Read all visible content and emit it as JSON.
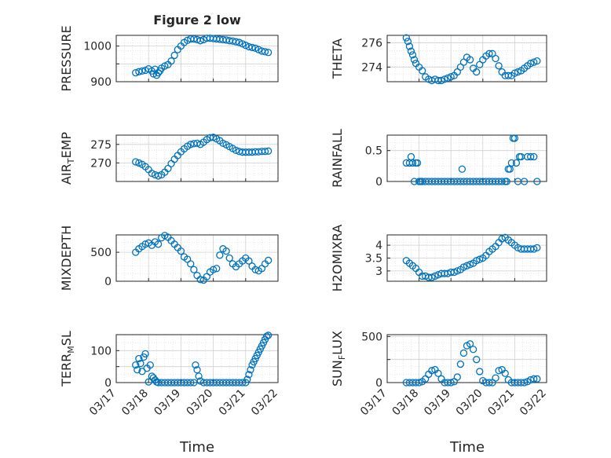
{
  "figure": {
    "title": "Figure 2 low",
    "xlabel": "Time",
    "marker_color": "#0072BD",
    "x_ticks": [
      "03/17",
      "03/18",
      "03/19",
      "03/20",
      "03/21",
      "03/22"
    ]
  },
  "chart_data": [
    {
      "type": "scatter",
      "name": "pressure",
      "ylabel": "PRESSURE",
      "ylim": [
        900,
        1030
      ],
      "yticks": [
        900,
        950,
        1000
      ],
      "ytick_labels": [
        "900",
        "",
        "1000"
      ],
      "x": [
        0.6,
        0.7,
        0.8,
        0.9,
        1.0,
        1.1,
        1.15,
        1.2,
        1.25,
        1.3,
        1.35,
        1.4,
        1.5,
        1.6,
        1.7,
        1.8,
        1.9,
        2.0,
        2.1,
        2.2,
        2.3,
        2.4,
        2.5,
        2.6,
        2.7,
        2.8,
        2.9,
        3.0,
        3.1,
        3.2,
        3.3,
        3.4,
        3.5,
        3.6,
        3.7,
        3.8,
        3.9,
        4.0,
        4.1,
        4.2,
        4.3,
        4.4,
        4.5,
        4.6,
        4.7
      ],
      "y": [
        925,
        928,
        930,
        932,
        936,
        930,
        922,
        935,
        918,
        925,
        930,
        938,
        944,
        948,
        958,
        974,
        990,
        1000,
        1010,
        1016,
        1020,
        1020,
        1018,
        1015,
        1018,
        1022,
        1022,
        1021,
        1020,
        1019,
        1018,
        1017,
        1015,
        1014,
        1012,
        1010,
        1006,
        1002,
        998,
        996,
        994,
        990,
        986,
        984,
        982
      ]
    },
    {
      "type": "scatter",
      "name": "theta",
      "ylabel": "THETA",
      "ylim": [
        272.8,
        276.6
      ],
      "yticks": [
        274,
        276
      ],
      "ytick_labels": [
        "274",
        "276"
      ],
      "x": [
        0.6,
        0.65,
        0.7,
        0.75,
        0.8,
        0.85,
        0.9,
        1.0,
        1.1,
        1.2,
        1.3,
        1.4,
        1.5,
        1.6,
        1.7,
        1.8,
        1.9,
        2.0,
        2.1,
        2.2,
        2.3,
        2.4,
        2.5,
        2.6,
        2.7,
        2.8,
        2.9,
        3.0,
        3.1,
        3.2,
        3.3,
        3.4,
        3.5,
        3.6,
        3.7,
        3.8,
        3.9,
        4.0,
        4.1,
        4.2,
        4.3,
        4.4,
        4.5,
        4.6,
        4.7
      ],
      "y": [
        276.4,
        276.1,
        275.7,
        275.3,
        275.0,
        274.6,
        274.3,
        274.0,
        273.7,
        273.2,
        273.0,
        272.9,
        273.0,
        272.9,
        272.9,
        273.0,
        273.1,
        273.2,
        273.3,
        273.6,
        274.0,
        274.4,
        274.8,
        274.6,
        273.9,
        273.6,
        274.2,
        274.6,
        274.9,
        275.1,
        275.1,
        274.7,
        274.1,
        273.6,
        273.3,
        273.3,
        273.3,
        273.5,
        273.6,
        273.7,
        273.9,
        274.1,
        274.3,
        274.4,
        274.5
      ]
    },
    {
      "type": "scatter",
      "name": "air_temp",
      "ylabel": "AIR_TEMP",
      "ylim": [
        265,
        277.5
      ],
      "yticks": [
        270,
        275
      ],
      "ytick_labels": [
        "270",
        "275"
      ],
      "x": [
        0.6,
        0.7,
        0.8,
        0.9,
        1.0,
        1.1,
        1.2,
        1.3,
        1.4,
        1.5,
        1.6,
        1.7,
        1.8,
        1.9,
        2.0,
        2.1,
        2.2,
        2.3,
        2.4,
        2.5,
        2.6,
        2.7,
        2.8,
        2.9,
        3.0,
        3.1,
        3.2,
        3.3,
        3.4,
        3.5,
        3.6,
        3.7,
        3.8,
        3.9,
        4.0,
        4.1,
        4.2,
        4.3,
        4.4,
        4.5,
        4.6,
        4.7
      ],
      "y": [
        270.3,
        270.0,
        269.6,
        269.0,
        268.2,
        267.2,
        266.8,
        266.5,
        266.8,
        267.5,
        268.5,
        269.8,
        271.0,
        272.0,
        273.0,
        273.8,
        274.5,
        275.0,
        275.2,
        275.3,
        275.0,
        275.6,
        276.3,
        276.8,
        276.9,
        276.5,
        276.0,
        275.3,
        274.9,
        274.4,
        273.9,
        273.4,
        273.1,
        272.9,
        272.9,
        272.9,
        272.9,
        273.0,
        273.0,
        273.1,
        273.1,
        273.2
      ]
    },
    {
      "type": "scatter",
      "name": "rainfall",
      "ylabel": "RAINFALL",
      "ylim": [
        0,
        0.75
      ],
      "yticks": [
        0,
        0.5
      ],
      "ytick_labels": [
        "0",
        "0.5"
      ],
      "x": [
        0.6,
        0.7,
        0.75,
        0.8,
        0.85,
        0.9,
        0.95,
        1.0,
        1.05,
        1.1,
        1.2,
        1.3,
        1.4,
        1.5,
        1.6,
        1.7,
        1.8,
        1.9,
        2.0,
        2.1,
        2.2,
        2.3,
        2.35,
        2.4,
        2.5,
        2.6,
        2.7,
        2.8,
        2.9,
        3.0,
        3.1,
        3.2,
        3.3,
        3.4,
        3.5,
        3.6,
        3.7,
        3.75,
        3.8,
        3.85,
        3.9,
        3.95,
        4.0,
        4.05,
        4.1,
        4.15,
        4.2,
        4.3,
        4.4,
        4.5,
        4.6,
        4.7
      ],
      "y": [
        0.3,
        0.3,
        0.4,
        0.3,
        0,
        0.3,
        0.3,
        0,
        0,
        0,
        0,
        0,
        0,
        0,
        0,
        0,
        0,
        0,
        0,
        0,
        0,
        0,
        0.2,
        0,
        0,
        0,
        0,
        0,
        0,
        0,
        0,
        0,
        0,
        0,
        0,
        0,
        0,
        0,
        0.2,
        0.2,
        0.3,
        0.7,
        0.7,
        0.3,
        0,
        0.4,
        0.4,
        0,
        0.4,
        0.4,
        0.4,
        0
      ]
    },
    {
      "type": "scatter",
      "name": "mixdepth",
      "ylabel": "MIXDEPTH",
      "ylim": [
        0,
        800
      ],
      "yticks": [
        0,
        500
      ],
      "ytick_labels": [
        "0",
        "500"
      ],
      "x": [
        0.6,
        0.7,
        0.8,
        0.9,
        1.0,
        1.1,
        1.2,
        1.3,
        1.4,
        1.5,
        1.6,
        1.7,
        1.8,
        1.9,
        2.0,
        2.1,
        2.2,
        2.3,
        2.4,
        2.5,
        2.6,
        2.7,
        2.8,
        2.9,
        3.0,
        3.1,
        3.2,
        3.3,
        3.4,
        3.5,
        3.6,
        3.7,
        3.8,
        3.9,
        4.0,
        4.1,
        4.2,
        4.3,
        4.4,
        4.5,
        4.6,
        4.7
      ],
      "y": [
        500,
        560,
        600,
        640,
        660,
        620,
        680,
        640,
        750,
        790,
        760,
        700,
        640,
        580,
        520,
        420,
        380,
        300,
        200,
        100,
        30,
        20,
        80,
        160,
        200,
        220,
        450,
        560,
        520,
        400,
        300,
        250,
        300,
        350,
        400,
        350,
        260,
        200,
        180,
        220,
        300,
        360
      ]
    },
    {
      "type": "scatter",
      "name": "h2omixra",
      "ylabel": "H2OMIXRA",
      "ylim": [
        2.6,
        4.4
      ],
      "yticks": [
        3,
        3.5,
        4
      ],
      "ytick_labels": [
        "3",
        "3.5",
        "4"
      ],
      "x": [
        0.6,
        0.7,
        0.8,
        0.9,
        1.0,
        1.1,
        1.2,
        1.3,
        1.4,
        1.5,
        1.6,
        1.7,
        1.8,
        1.9,
        2.0,
        2.1,
        2.2,
        2.3,
        2.4,
        2.5,
        2.6,
        2.7,
        2.8,
        2.9,
        3.0,
        3.1,
        3.2,
        3.3,
        3.4,
        3.5,
        3.6,
        3.7,
        3.8,
        3.9,
        4.0,
        4.1,
        4.2,
        4.3,
        4.4,
        4.5,
        4.6,
        4.7
      ],
      "y": [
        3.4,
        3.3,
        3.2,
        3.1,
        2.95,
        2.8,
        2.8,
        2.75,
        2.75,
        2.8,
        2.85,
        2.9,
        2.9,
        2.9,
        2.95,
        2.95,
        3.0,
        3.05,
        3.15,
        3.2,
        3.25,
        3.3,
        3.4,
        3.45,
        3.5,
        3.6,
        3.75,
        3.85,
        3.95,
        4.1,
        4.25,
        4.3,
        4.2,
        4.1,
        4.0,
        3.9,
        3.85,
        3.85,
        3.85,
        3.85,
        3.85,
        3.9
      ]
    },
    {
      "type": "scatter",
      "name": "terr_msl",
      "ylabel": "TERR_MSL",
      "ylim": [
        0,
        150
      ],
      "yticks": [
        0,
        50,
        100
      ],
      "ytick_labels": [
        "0",
        "",
        "100"
      ],
      "x": [
        0.6,
        0.65,
        0.7,
        0.75,
        0.8,
        0.85,
        0.9,
        0.95,
        1.0,
        1.05,
        1.1,
        1.15,
        1.2,
        1.25,
        1.3,
        1.4,
        1.5,
        1.6,
        1.7,
        1.8,
        1.9,
        2.0,
        2.1,
        2.2,
        2.3,
        2.4,
        2.45,
        2.5,
        2.55,
        2.6,
        2.7,
        2.8,
        2.9,
        3.0,
        3.1,
        3.2,
        3.3,
        3.4,
        3.5,
        3.6,
        3.7,
        3.8,
        3.9,
        4.0,
        4.05,
        4.1,
        4.15,
        4.2,
        4.25,
        4.3,
        4.35,
        4.4,
        4.45,
        4.5,
        4.55,
        4.6,
        4.65,
        4.7
      ],
      "y": [
        55,
        40,
        75,
        60,
        35,
        80,
        90,
        45,
        2,
        55,
        20,
        15,
        8,
        2,
        0,
        0,
        0,
        0,
        0,
        0,
        0,
        0,
        0,
        0,
        0,
        0,
        55,
        40,
        20,
        5,
        0,
        0,
        0,
        0,
        0,
        0,
        0,
        0,
        0,
        0,
        0,
        0,
        0,
        0,
        10,
        25,
        40,
        55,
        65,
        75,
        85,
        95,
        105,
        115,
        125,
        135,
        145,
        148
      ]
    },
    {
      "type": "scatter",
      "name": "sun_flux",
      "ylabel": "SUN_FLUX",
      "ylim": [
        0,
        520
      ],
      "yticks": [
        0,
        250,
        500
      ],
      "ytick_labels": [
        "0",
        "",
        "500"
      ],
      "x": [
        0.6,
        0.7,
        0.8,
        0.9,
        1.0,
        1.1,
        1.2,
        1.3,
        1.4,
        1.5,
        1.6,
        1.7,
        1.8,
        1.9,
        2.0,
        2.1,
        2.2,
        2.3,
        2.4,
        2.5,
        2.6,
        2.7,
        2.8,
        2.9,
        3.0,
        3.1,
        3.2,
        3.3,
        3.4,
        3.5,
        3.6,
        3.7,
        3.8,
        3.9,
        4.0,
        4.1,
        4.2,
        4.3,
        4.4,
        4.5,
        4.6,
        4.7
      ],
      "y": [
        0,
        0,
        0,
        0,
        0,
        10,
        40,
        90,
        130,
        140,
        100,
        40,
        0,
        0,
        0,
        10,
        60,
        200,
        320,
        400,
        420,
        360,
        250,
        120,
        20,
        0,
        0,
        0,
        50,
        130,
        140,
        100,
        30,
        0,
        0,
        0,
        0,
        0,
        10,
        30,
        40,
        40
      ]
    }
  ]
}
